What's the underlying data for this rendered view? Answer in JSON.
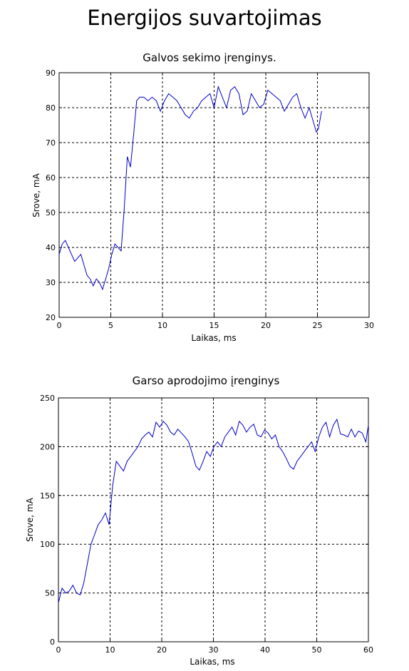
{
  "page_title": "Energijos suvartojimas",
  "colors": {
    "series": "#0000c8",
    "axis": "#000000"
  },
  "chart_data": [
    {
      "type": "line",
      "title": "Galvos sekimo įrenginys.",
      "xlabel": "Laikas, ms",
      "ylabel": "Srove, mA",
      "xlim": [
        0,
        30
      ],
      "ylim": [
        20,
        90
      ],
      "xticks": [
        0,
        5,
        10,
        15,
        20,
        25,
        30
      ],
      "yticks": [
        20,
        30,
        40,
        50,
        60,
        70,
        80,
        90
      ],
      "grid": true,
      "series": [
        {
          "color": "#0000c8",
          "x": [
            0,
            0.3,
            0.6,
            0.9,
            1.2,
            1.5,
            1.8,
            2.1,
            2.4,
            2.7,
            3.0,
            3.3,
            3.6,
            3.9,
            4.2,
            4.5,
            4.8,
            5.1,
            5.4,
            5.7,
            6.0,
            6.3,
            6.6,
            6.9,
            7.2,
            7.5,
            7.8,
            8.2,
            8.6,
            9.0,
            9.4,
            9.8,
            10.2,
            10.6,
            11.0,
            11.4,
            11.8,
            12.2,
            12.6,
            13.0,
            13.4,
            13.8,
            14.2,
            14.6,
            15.0,
            15.4,
            15.8,
            16.2,
            16.6,
            17.0,
            17.4,
            17.8,
            18.2,
            18.6,
            19.0,
            19.4,
            19.8,
            20.2,
            20.6,
            21.0,
            21.4,
            21.8,
            22.2,
            22.6,
            23.0,
            23.4,
            23.8,
            24.2,
            24.6,
            24.9,
            25.1,
            25.4
          ],
          "values": [
            38,
            41,
            42,
            40,
            38,
            36,
            37,
            38,
            35,
            32,
            31,
            29,
            31,
            30,
            28,
            31,
            34,
            38,
            41,
            40,
            39,
            51,
            66,
            63,
            72,
            82,
            83,
            83,
            82,
            83,
            82,
            79,
            82,
            84,
            83,
            82,
            80,
            78,
            77,
            79,
            80,
            82,
            83,
            84,
            80,
            86,
            83,
            80,
            85,
            86,
            84,
            78,
            79,
            84,
            82,
            80,
            81,
            85,
            84,
            83,
            82,
            79,
            81,
            83,
            84,
            80,
            77,
            80,
            76,
            73,
            74,
            79
          ]
        }
      ]
    },
    {
      "type": "line",
      "title": "Garso aprodojimo įrenginys",
      "xlabel": "Laikas, ms",
      "ylabel": "Srove, mA",
      "xlim": [
        0,
        60
      ],
      "ylim": [
        0,
        250
      ],
      "xticks": [
        0,
        10,
        20,
        30,
        40,
        50,
        60
      ],
      "yticks": [
        0,
        50,
        100,
        150,
        200,
        250
      ],
      "grid": true,
      "series": [
        {
          "color": "#0000c8",
          "x": [
            0,
            0.7,
            1.4,
            2.1,
            2.8,
            3.5,
            4.2,
            4.9,
            5.6,
            6.3,
            7.0,
            7.7,
            8.4,
            9.1,
            9.8,
            10.5,
            11.2,
            11.9,
            12.6,
            13.3,
            14.0,
            14.7,
            15.4,
            16.1,
            16.8,
            17.5,
            18.2,
            18.9,
            19.6,
            20.3,
            21.0,
            21.7,
            22.4,
            23.1,
            23.8,
            24.5,
            25.2,
            25.9,
            26.6,
            27.3,
            28.0,
            28.7,
            29.4,
            30.1,
            30.8,
            31.5,
            32.2,
            32.9,
            33.6,
            34.3,
            35.0,
            35.7,
            36.4,
            37.1,
            37.8,
            38.5,
            39.2,
            39.9,
            40.6,
            41.3,
            42.0,
            42.7,
            43.4,
            44.1,
            44.8,
            45.5,
            46.2,
            46.9,
            47.6,
            48.3,
            49.0,
            49.7,
            50.4,
            51.1,
            51.8,
            52.5,
            53.2,
            53.9,
            54.6,
            55.3,
            56.0,
            56.7,
            57.4,
            58.1,
            58.8,
            59.5,
            60
          ],
          "values": [
            40,
            55,
            50,
            52,
            58,
            50,
            48,
            60,
            80,
            100,
            110,
            120,
            125,
            132,
            120,
            160,
            185,
            180,
            175,
            185,
            190,
            195,
            200,
            208,
            212,
            215,
            210,
            225,
            220,
            226,
            222,
            215,
            212,
            218,
            214,
            210,
            205,
            193,
            180,
            176,
            185,
            195,
            190,
            200,
            205,
            200,
            210,
            215,
            220,
            212,
            226,
            222,
            215,
            220,
            223,
            212,
            210,
            217,
            214,
            208,
            212,
            200,
            195,
            188,
            180,
            177,
            185,
            190,
            195,
            200,
            205,
            195,
            210,
            220,
            225,
            210,
            222,
            228,
            213,
            212,
            210,
            218,
            210,
            216,
            214,
            205,
            222
          ]
        }
      ]
    }
  ]
}
